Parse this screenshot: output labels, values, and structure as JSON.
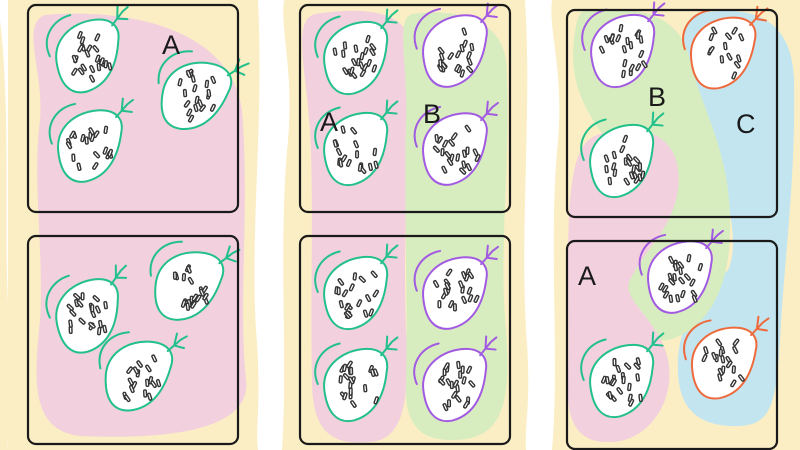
{
  "colors": {
    "background": "#fbeec4",
    "region_a": "#f2d0de",
    "region_b": "#d7edbf",
    "region_c": "#c3e5f0",
    "cell_green": "#22c08a",
    "cell_purple": "#a25ae2",
    "cell_orange": "#ee6a3d",
    "box": "#1a1a1a"
  },
  "icons": {
    "cell": "bacteria-cell-icon"
  },
  "panels": [
    {
      "labels": [
        "A"
      ],
      "cells": [
        {
          "color": "cell_green"
        },
        {
          "color": "cell_green"
        },
        {
          "color": "cell_green"
        },
        {
          "color": "cell_green"
        },
        {
          "color": "cell_green"
        },
        {
          "color": "cell_green"
        }
      ]
    },
    {
      "labels": [
        "A",
        "B"
      ],
      "cells": [
        {
          "color": "cell_green"
        },
        {
          "color": "cell_purple"
        },
        {
          "color": "cell_green"
        },
        {
          "color": "cell_purple"
        },
        {
          "color": "cell_green"
        },
        {
          "color": "cell_purple"
        },
        {
          "color": "cell_green"
        },
        {
          "color": "cell_purple"
        }
      ]
    },
    {
      "labels": [
        "B",
        "C",
        "A"
      ],
      "cells": [
        {
          "color": "cell_purple"
        },
        {
          "color": "cell_orange"
        },
        {
          "color": "cell_green"
        },
        {
          "color": "cell_purple"
        },
        {
          "color": "cell_orange"
        },
        {
          "color": "cell_green"
        }
      ]
    }
  ]
}
